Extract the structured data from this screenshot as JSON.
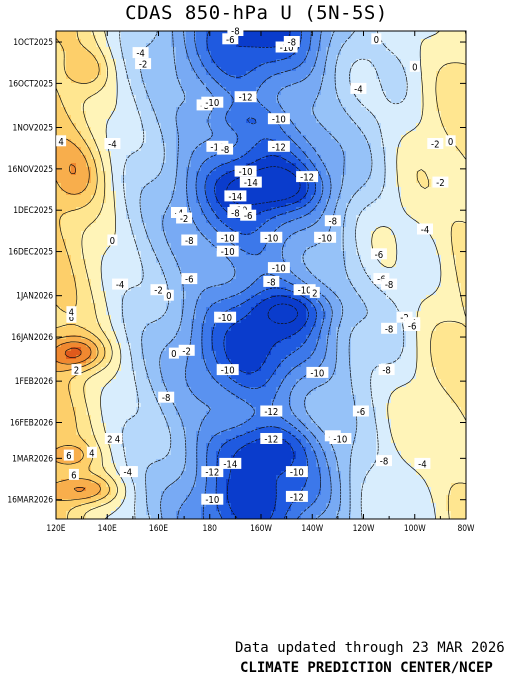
{
  "header": {
    "title": "CDAS 850-hPa U (5N-5S)"
  },
  "footer": {
    "updated": "Data updated through 23 MAR 2026",
    "credit": "CLIMATE PREDICTION CENTER/NCEP"
  },
  "chart_data": {
    "type": "heatmap",
    "title": "CDAS 850-hPa U (5N-5S)",
    "x_label": "",
    "y_label": "",
    "x_tick_labels": [
      "120E",
      "140E",
      "160E",
      "180",
      "160W",
      "140W",
      "120W",
      "100W",
      "80W"
    ],
    "x_range_deg_east": [
      120,
      280
    ],
    "y_tick_labels": [
      "1OCT2025",
      "16OCT2025",
      "1NOV2025",
      "16NOV2025",
      "1DEC2025",
      "16DEC2025",
      "1JAN2026",
      "16JAN2026",
      "1FEB2026",
      "16FEB2026",
      "1MAR2026",
      "16MAR2026"
    ],
    "y_range": [
      "2025-09-27",
      "2026-03-23"
    ],
    "contour_interval_m_s": 2,
    "color_scale": {
      "-16": "#0a3ccc",
      "-14": "#1f5ae0",
      "-12": "#3c78ea",
      "-10": "#5a92f0",
      "-8": "#78aaf4",
      "-6": "#96c2f8",
      "-4": "#b6d8fb",
      "-2": "#d8edfd",
      "0": "#fff4b8",
      "2": "#ffe690",
      "4": "#fdcf6a",
      "6": "#f8ae4c",
      "8": "#f08830",
      "10": "#e05a1c"
    },
    "labels": [
      {
        "lon": 153,
        "date": "2025-10-05",
        "value": "-4"
      },
      {
        "lon": 154,
        "date": "2025-10-09",
        "value": "-2"
      },
      {
        "lon": 188,
        "date": "2025-09-30",
        "value": "-6"
      },
      {
        "lon": 190,
        "date": "2025-09-27",
        "value": "-8"
      },
      {
        "lon": 210,
        "date": "2025-10-03",
        "value": "-10"
      },
      {
        "lon": 212,
        "date": "2025-10-01",
        "value": "-8"
      },
      {
        "lon": 245,
        "date": "2025-09-30",
        "value": "0"
      },
      {
        "lon": 260,
        "date": "2025-10-10",
        "value": "0"
      },
      {
        "lon": 238,
        "date": "2025-10-18",
        "value": "-4"
      },
      {
        "lon": 178,
        "date": "2025-10-24",
        "value": "-8"
      },
      {
        "lon": 181,
        "date": "2025-10-23",
        "value": "-10"
      },
      {
        "lon": 194,
        "date": "2025-10-21",
        "value": "-12"
      },
      {
        "lon": 142,
        "date": "2025-11-07",
        "value": "-4"
      },
      {
        "lon": 122,
        "date": "2025-11-06",
        "value": "4"
      },
      {
        "lon": 207,
        "date": "2025-10-29",
        "value": "-10"
      },
      {
        "lon": 183,
        "date": "2025-11-08",
        "value": "-10"
      },
      {
        "lon": 186,
        "date": "2025-11-09",
        "value": "-8"
      },
      {
        "lon": 207,
        "date": "2025-11-08",
        "value": "-12"
      },
      {
        "lon": 268,
        "date": "2025-11-07",
        "value": "-2"
      },
      {
        "lon": 274,
        "date": "2025-11-06",
        "value": "0"
      },
      {
        "lon": 194,
        "date": "2025-11-17",
        "value": "-10"
      },
      {
        "lon": 196,
        "date": "2025-11-21",
        "value": "-14"
      },
      {
        "lon": 218,
        "date": "2025-11-19",
        "value": "-12"
      },
      {
        "lon": 190,
        "date": "2025-11-26",
        "value": "-14"
      },
      {
        "lon": 270,
        "date": "2025-11-21",
        "value": "-2"
      },
      {
        "lon": 192,
        "date": "2025-12-01",
        "value": "-10"
      },
      {
        "lon": 190,
        "date": "2025-12-02",
        "value": "-8"
      },
      {
        "lon": 195,
        "date": "2025-12-03",
        "value": "-6"
      },
      {
        "lon": 168,
        "date": "2025-12-02",
        "value": "-4"
      },
      {
        "lon": 170,
        "date": "2025-12-04",
        "value": "-2"
      },
      {
        "lon": 228,
        "date": "2025-12-05",
        "value": "-8"
      },
      {
        "lon": 264,
        "date": "2025-12-08",
        "value": "-4"
      },
      {
        "lon": 142,
        "date": "2025-12-12",
        "value": "0"
      },
      {
        "lon": 172,
        "date": "2025-12-12",
        "value": "-8"
      },
      {
        "lon": 187,
        "date": "2025-12-11",
        "value": "-10"
      },
      {
        "lon": 204,
        "date": "2025-12-11",
        "value": "-10"
      },
      {
        "lon": 225,
        "date": "2025-12-11",
        "value": "-10"
      },
      {
        "lon": 187,
        "date": "2025-12-16",
        "value": "-10"
      },
      {
        "lon": 246,
        "date": "2025-12-17",
        "value": "-6"
      },
      {
        "lon": 207,
        "date": "2025-12-22",
        "value": "-10"
      },
      {
        "lon": 172,
        "date": "2025-12-26",
        "value": "-6"
      },
      {
        "lon": 204,
        "date": "2025-12-27",
        "value": "-8"
      },
      {
        "lon": 247,
        "date": "2025-12-26",
        "value": "-6"
      },
      {
        "lon": 250,
        "date": "2025-12-28",
        "value": "-8"
      },
      {
        "lon": 145,
        "date": "2025-12-28",
        "value": "-4"
      },
      {
        "lon": 160,
        "date": "2025-12-30",
        "value": "-2"
      },
      {
        "lon": 164,
        "date": "2026-01-01",
        "value": "0"
      },
      {
        "lon": 217,
        "date": "2025-12-30",
        "value": "-10"
      },
      {
        "lon": 221,
        "date": "2025-12-31",
        "value": "2"
      },
      {
        "lon": 126,
        "date": "2026-01-09",
        "value": "6"
      },
      {
        "lon": 126,
        "date": "2026-01-07",
        "value": "4"
      },
      {
        "lon": 186,
        "date": "2026-01-09",
        "value": "-10"
      },
      {
        "lon": 256,
        "date": "2026-01-09",
        "value": "-2"
      },
      {
        "lon": 259,
        "date": "2026-01-11",
        "value": "-4"
      },
      {
        "lon": 259,
        "date": "2026-01-12",
        "value": "-6"
      },
      {
        "lon": 250,
        "date": "2026-01-13",
        "value": "-8"
      },
      {
        "lon": 166,
        "date": "2026-01-22",
        "value": "0"
      },
      {
        "lon": 171,
        "date": "2026-01-21",
        "value": "-2"
      },
      {
        "lon": 187,
        "date": "2026-01-28",
        "value": "-10"
      },
      {
        "lon": 222,
        "date": "2026-01-29",
        "value": "-10"
      },
      {
        "lon": 249,
        "date": "2026-01-28",
        "value": "-8"
      },
      {
        "lon": 128,
        "date": "2026-01-28",
        "value": "2"
      },
      {
        "lon": 163,
        "date": "2026-02-07",
        "value": "-8"
      },
      {
        "lon": 204,
        "date": "2026-02-12",
        "value": "-12"
      },
      {
        "lon": 239,
        "date": "2026-02-12",
        "value": "-6"
      },
      {
        "lon": 141,
        "date": "2026-02-22",
        "value": "2"
      },
      {
        "lon": 144,
        "date": "2026-02-22",
        "value": "4"
      },
      {
        "lon": 204,
        "date": "2026-02-22",
        "value": "-12"
      },
      {
        "lon": 228,
        "date": "2026-02-21",
        "value": "-8"
      },
      {
        "lon": 231,
        "date": "2026-02-22",
        "value": "-10"
      },
      {
        "lon": 125,
        "date": "2026-02-28",
        "value": "6"
      },
      {
        "lon": 134,
        "date": "2026-02-27",
        "value": "4"
      },
      {
        "lon": 248,
        "date": "2026-03-02",
        "value": "-8"
      },
      {
        "lon": 188,
        "date": "2026-03-03",
        "value": "-14"
      },
      {
        "lon": 150,
        "date": "2026-03-06",
        "value": "2"
      },
      {
        "lon": 148,
        "date": "2026-03-06",
        "value": "-4"
      },
      {
        "lon": 127,
        "date": "2026-03-07",
        "value": "6"
      },
      {
        "lon": 181,
        "date": "2026-03-06",
        "value": "-12"
      },
      {
        "lon": 214,
        "date": "2026-03-06",
        "value": "-10"
      },
      {
        "lon": 263,
        "date": "2026-03-03",
        "value": "-4"
      },
      {
        "lon": 214,
        "date": "2026-03-15",
        "value": "-12"
      },
      {
        "lon": 181,
        "date": "2026-03-16",
        "value": "-10"
      }
    ]
  }
}
